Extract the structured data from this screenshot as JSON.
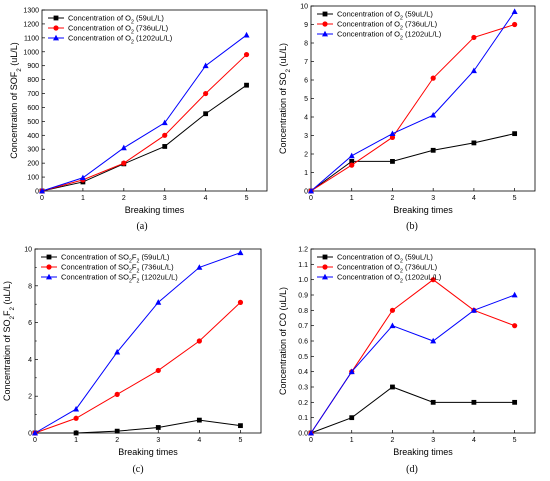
{
  "chart_data": [
    {
      "type": "line",
      "caption": "(a)",
      "xlabel": "Breaking times",
      "ylabel": "Concentration of SOF₂ (uL/L)",
      "xlim": [
        0,
        5.5
      ],
      "ylim": [
        0,
        1300
      ],
      "xticks": [
        0,
        1,
        2,
        3,
        4,
        5
      ],
      "yticks": [
        0,
        100,
        200,
        300,
        400,
        500,
        600,
        700,
        800,
        900,
        1000,
        1100,
        1200,
        1300
      ],
      "legend_position": "top-left",
      "x": [
        0,
        1,
        2,
        3,
        4,
        5
      ],
      "series": [
        {
          "name": "Concentration of O₂ (59uL/L)",
          "color": "#000000",
          "marker": "square",
          "values": [
            0,
            65,
            195,
            320,
            555,
            760
          ]
        },
        {
          "name": "Concentration of O₂ (736uL/L)",
          "color": "#ff0000",
          "marker": "circle",
          "values": [
            0,
            80,
            200,
            400,
            700,
            980
          ]
        },
        {
          "name": "Concentration of O₂ (1202uL/L)",
          "color": "#0000ff",
          "marker": "triangle",
          "values": [
            0,
            95,
            310,
            490,
            900,
            1120
          ]
        }
      ]
    },
    {
      "type": "line",
      "caption": "(b)",
      "xlabel": "Breaking times",
      "ylabel": "Concentration of SO₂ (uL/L)",
      "xlim": [
        0,
        5.5
      ],
      "ylim": [
        0,
        10
      ],
      "xticks": [
        0,
        1,
        2,
        3,
        4,
        5
      ],
      "yticks": [
        0,
        1,
        2,
        3,
        4,
        5,
        6,
        7,
        8,
        9,
        10
      ],
      "legend_position": "top-left",
      "x": [
        0,
        1,
        2,
        3,
        4,
        5
      ],
      "series": [
        {
          "name": "Concentration of O₂ (59uL/L)",
          "color": "#000000",
          "marker": "square",
          "values": [
            0,
            1.6,
            1.6,
            2.2,
            2.6,
            3.1
          ]
        },
        {
          "name": "Concentration of O₂ (736uL/L)",
          "color": "#ff0000",
          "marker": "circle",
          "values": [
            0,
            1.4,
            2.9,
            6.1,
            8.3,
            9.0
          ]
        },
        {
          "name": "Concentration of O₂ (1202uL/L)",
          "color": "#0000ff",
          "marker": "triangle",
          "values": [
            0,
            1.9,
            3.1,
            4.1,
            6.5,
            9.7
          ]
        }
      ]
    },
    {
      "type": "line",
      "caption": "(c)",
      "xlabel": "Breaking times",
      "ylabel": "Concentration of SO₂F₂ (uL/L)",
      "xlim": [
        0,
        5.5
      ],
      "ylim": [
        0,
        10
      ],
      "xticks": [
        0,
        1,
        2,
        3,
        4,
        5
      ],
      "yticks": [
        0,
        2,
        4,
        6,
        8,
        10
      ],
      "minor_yticks": true,
      "legend_position": "top-left",
      "x": [
        0,
        1,
        2,
        3,
        4,
        5
      ],
      "series": [
        {
          "name": "Concentration of SO₂F₂ (59uL/L)",
          "color": "#000000",
          "marker": "square",
          "values": [
            0,
            0,
            0.1,
            0.3,
            0.7,
            0.4
          ]
        },
        {
          "name": "Concentration of SO₂F₂ (736uL/L)",
          "color": "#ff0000",
          "marker": "circle",
          "values": [
            0,
            0.8,
            2.1,
            3.4,
            5.0,
            7.1
          ]
        },
        {
          "name": "Concentration of SO₂F₂ (1202uL/L)",
          "color": "#0000ff",
          "marker": "triangle",
          "values": [
            0,
            1.3,
            4.4,
            7.1,
            9.0,
            9.8
          ]
        }
      ]
    },
    {
      "type": "line",
      "caption": "(d)",
      "xlabel": "Breaking times",
      "ylabel": "Concentration of CO (uL/L)",
      "xlim": [
        0,
        5.5
      ],
      "ylim": [
        0,
        1.2
      ],
      "xticks": [
        0,
        1,
        2,
        3,
        4,
        5
      ],
      "yticks": [
        0.0,
        0.1,
        0.2,
        0.3,
        0.4,
        0.5,
        0.6,
        0.7,
        0.8,
        0.9,
        1.0,
        1.1,
        1.2
      ],
      "legend_position": "top-left",
      "x": [
        0,
        1,
        2,
        3,
        4,
        5
      ],
      "series": [
        {
          "name": "Concentration of O₂ (59uL/L)",
          "color": "#000000",
          "marker": "square",
          "values": [
            0,
            0.1,
            0.3,
            0.2,
            0.2,
            0.2
          ]
        },
        {
          "name": "Concentration of O₂ (736uL/L)",
          "color": "#ff0000",
          "marker": "circle",
          "values": [
            0,
            0.4,
            0.8,
            1.0,
            0.8,
            0.7
          ]
        },
        {
          "name": "Concentration of O₂ (1202uL/L)",
          "color": "#0000ff",
          "marker": "triangle",
          "values": [
            0,
            0.4,
            0.7,
            0.6,
            0.8,
            0.9
          ]
        }
      ]
    }
  ]
}
